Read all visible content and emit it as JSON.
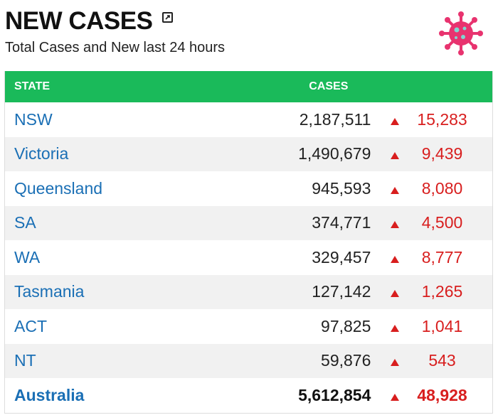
{
  "header": {
    "title": "NEW CASES",
    "subtitle": "Total Cases and New last 24 hours"
  },
  "icons": {
    "popout": "external-window-icon",
    "virus": "virus-icon"
  },
  "colors": {
    "accent": "#1aba5a",
    "link": "#1a6fb5",
    "increase": "#d81e1e",
    "virus": "#e8336f"
  },
  "table": {
    "columns": [
      "STATE",
      "CASES"
    ],
    "rows": [
      {
        "state": "NSW",
        "cases": "2,187,511",
        "new": "15,283"
      },
      {
        "state": "Victoria",
        "cases": "1,490,679",
        "new": "9,439"
      },
      {
        "state": "Queensland",
        "cases": "945,593",
        "new": "8,080"
      },
      {
        "state": "SA",
        "cases": "374,771",
        "new": "4,500"
      },
      {
        "state": "WA",
        "cases": "329,457",
        "new": "8,777"
      },
      {
        "state": "Tasmania",
        "cases": "127,142",
        "new": "1,265"
      },
      {
        "state": "ACT",
        "cases": "97,825",
        "new": "1,041"
      },
      {
        "state": "NT",
        "cases": "59,876",
        "new": "543"
      },
      {
        "state": "Australia",
        "cases": "5,612,854",
        "new": "48,928"
      }
    ]
  }
}
